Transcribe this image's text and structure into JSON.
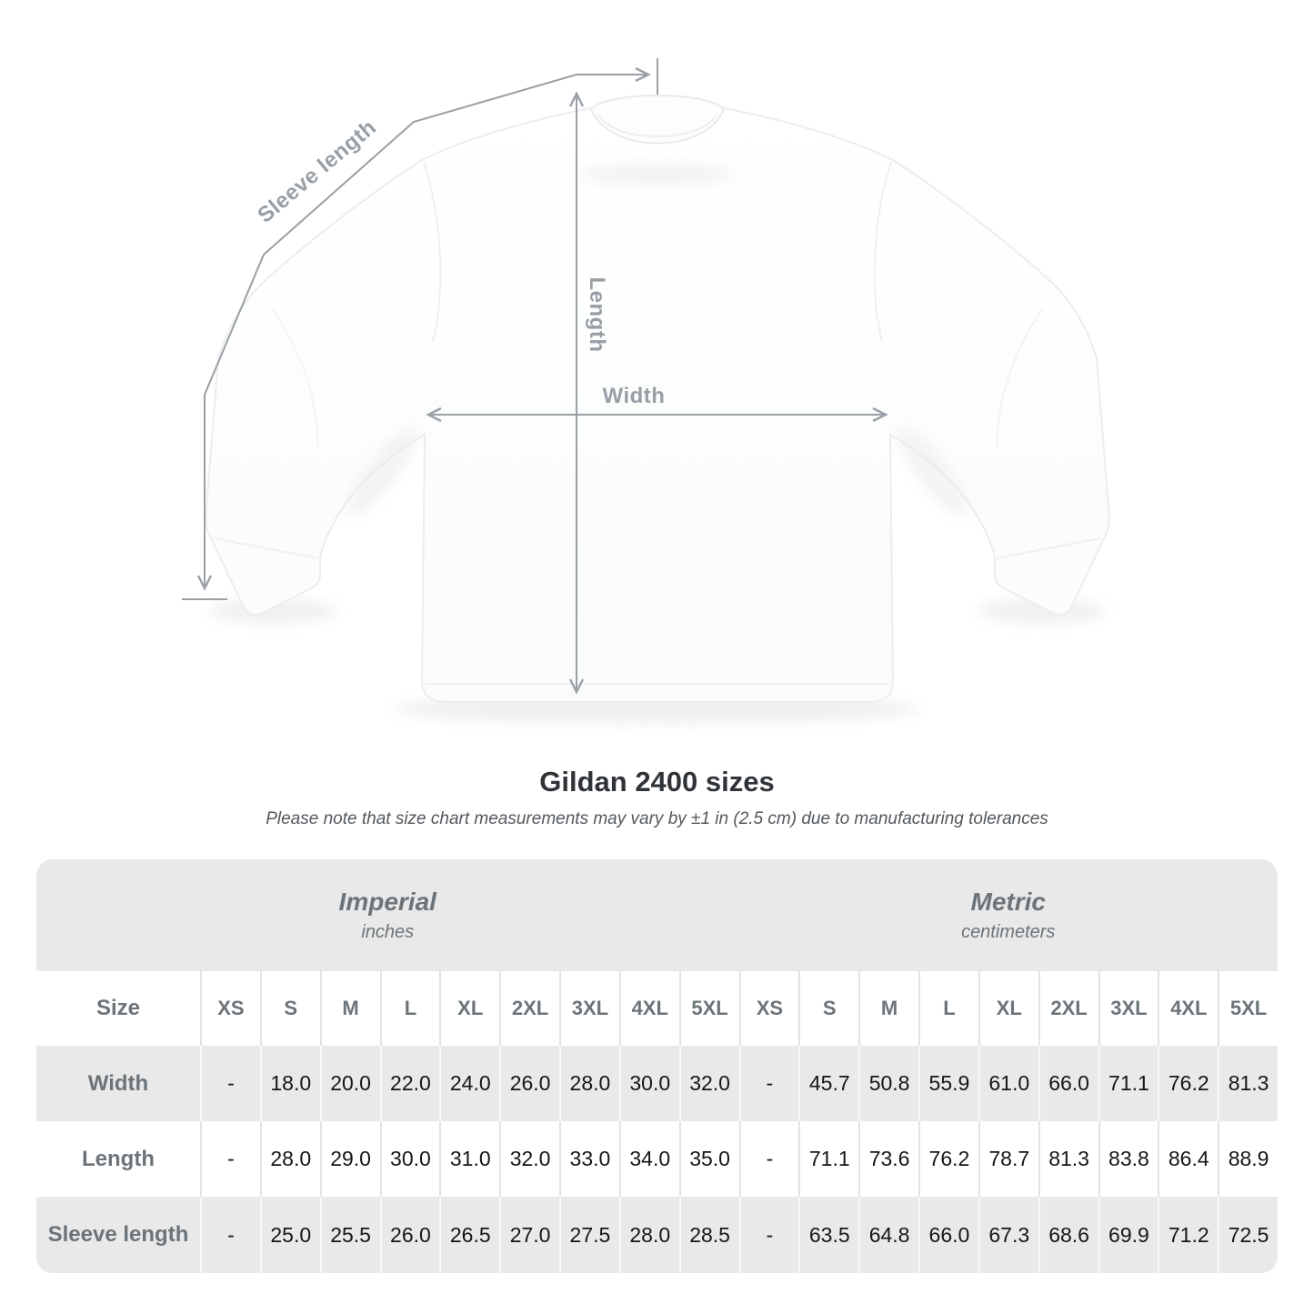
{
  "colors": {
    "measure_line": "#9aa0a6",
    "measure_label": "#98a0a6",
    "table_bg": "#e9e9e9",
    "table_header_text": "#6d7479",
    "table_value_text": "#161616",
    "title_text": "#303438",
    "note_text": "#53585d"
  },
  "diagram": {
    "sleeve_label": "Sleeve length",
    "length_label": "Length",
    "width_label": "Width"
  },
  "title": "Gildan 2400 sizes",
  "subtitle": "Please note that size chart measurements may vary by ±1 in (2.5 cm) due to manufacturing tolerances",
  "table": {
    "size_header": "Size",
    "sizes": [
      "XS",
      "S",
      "M",
      "L",
      "XL",
      "2XL",
      "3XL",
      "4XL",
      "5XL"
    ],
    "groups": [
      {
        "label": "Imperial",
        "sublabel": "inches"
      },
      {
        "label": "Metric",
        "sublabel": "centimeters"
      }
    ],
    "rows": [
      {
        "label": "Width",
        "imperial": [
          "-",
          "18.0",
          "20.0",
          "22.0",
          "24.0",
          "26.0",
          "28.0",
          "30.0",
          "32.0"
        ],
        "metric": [
          "-",
          "45.7",
          "50.8",
          "55.9",
          "61.0",
          "66.0",
          "71.1",
          "76.2",
          "81.3"
        ]
      },
      {
        "label": "Length",
        "imperial": [
          "-",
          "28.0",
          "29.0",
          "30.0",
          "31.0",
          "32.0",
          "33.0",
          "34.0",
          "35.0"
        ],
        "metric": [
          "-",
          "71.1",
          "73.6",
          "76.2",
          "78.7",
          "81.3",
          "83.8",
          "86.4",
          "88.9"
        ]
      },
      {
        "label": "Sleeve length",
        "imperial": [
          "-",
          "25.0",
          "25.5",
          "26.0",
          "26.5",
          "27.0",
          "27.5",
          "28.0",
          "28.5"
        ],
        "metric": [
          "-",
          "63.5",
          "64.8",
          "66.0",
          "67.3",
          "68.6",
          "69.9",
          "71.2",
          "72.5"
        ]
      }
    ]
  },
  "chart_data": {
    "type": "table",
    "title": "Gildan 2400 sizes",
    "note": "Please note that size chart measurements may vary by ±1 in (2.5 cm) due to manufacturing tolerances",
    "sizes": [
      "XS",
      "S",
      "M",
      "L",
      "XL",
      "2XL",
      "3XL",
      "4XL",
      "5XL"
    ],
    "units": [
      "inches",
      "centimeters"
    ],
    "measurements": [
      {
        "name": "Width",
        "inches": [
          null,
          18.0,
          20.0,
          22.0,
          24.0,
          26.0,
          28.0,
          30.0,
          32.0
        ],
        "centimeters": [
          null,
          45.7,
          50.8,
          55.9,
          61.0,
          66.0,
          71.1,
          76.2,
          81.3
        ]
      },
      {
        "name": "Length",
        "inches": [
          null,
          28.0,
          29.0,
          30.0,
          31.0,
          32.0,
          33.0,
          34.0,
          35.0
        ],
        "centimeters": [
          null,
          71.1,
          73.6,
          76.2,
          78.7,
          81.3,
          83.8,
          86.4,
          88.9
        ]
      },
      {
        "name": "Sleeve length",
        "inches": [
          null,
          25.0,
          25.5,
          26.0,
          26.5,
          27.0,
          27.5,
          28.0,
          28.5
        ],
        "centimeters": [
          null,
          63.5,
          64.8,
          66.0,
          67.3,
          68.6,
          69.9,
          71.2,
          72.5
        ]
      }
    ]
  }
}
